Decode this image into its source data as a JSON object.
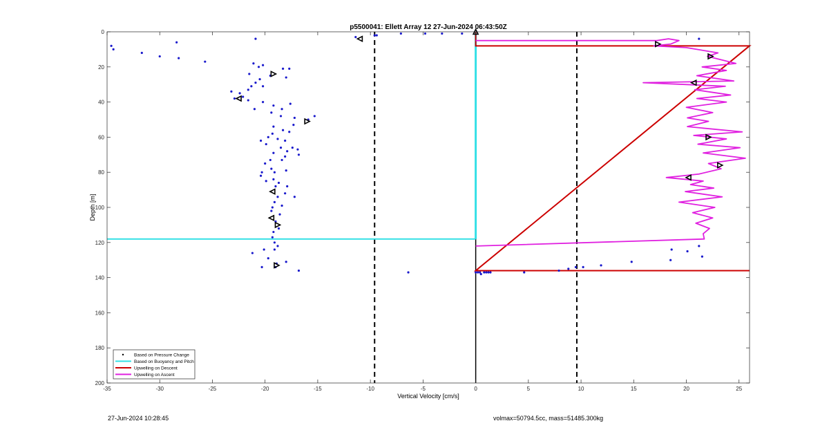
{
  "chart_data": {
    "type": "scatter",
    "title": "p5500041: Ellett Array 12 27-Jun-2024 06:43:50Z",
    "xlabel": "Vertical Velocity [cm/s]",
    "ylabel": "Depth [m]",
    "xlim": [
      -35,
      26
    ],
    "ylim": [
      0,
      200
    ],
    "y_reversed": true,
    "x_ticks": [
      -35,
      -30,
      -25,
      -20,
      -15,
      -10,
      -5,
      0,
      5,
      10,
      15,
      20,
      25
    ],
    "y_ticks": [
      0,
      20,
      40,
      60,
      80,
      100,
      120,
      140,
      160,
      180,
      200
    ],
    "grid": false,
    "legend_position": "bottom-left",
    "legend": [
      {
        "label": "Based on Pressure Change",
        "color": "#000000",
        "kind": "dot"
      },
      {
        "label": "Based on Buoyancy and Pitch",
        "color": "#33e0e6",
        "kind": "line"
      },
      {
        "label": "Upwelling on Descent",
        "color": "#cc0000",
        "kind": "line"
      },
      {
        "label": "Upwelling on Ascent",
        "color": "#e020e0",
        "kind": "line"
      }
    ],
    "pressure_points": [
      [
        -34.6,
        8
      ],
      [
        -34.4,
        10
      ],
      [
        -31.7,
        12
      ],
      [
        -30,
        14
      ],
      [
        -28.4,
        6
      ],
      [
        -28.2,
        15
      ],
      [
        -25.7,
        17
      ],
      [
        -20.9,
        4
      ],
      [
        -21.1,
        18
      ],
      [
        -20.6,
        20
      ],
      [
        -20.2,
        19
      ],
      [
        -21.5,
        24
      ],
      [
        -19.5,
        25
      ],
      [
        -18.3,
        21
      ],
      [
        -17.7,
        21
      ],
      [
        -18,
        26
      ],
      [
        -20.5,
        27
      ],
      [
        -20.9,
        29
      ],
      [
        -20.2,
        31
      ],
      [
        -21.3,
        31
      ],
      [
        -21.6,
        33
      ],
      [
        -22.4,
        35
      ],
      [
        -23.2,
        34
      ],
      [
        -22.1,
        37
      ],
      [
        -22.9,
        38
      ],
      [
        -21.6,
        39
      ],
      [
        -20.2,
        40
      ],
      [
        -21,
        44
      ],
      [
        -19.2,
        42
      ],
      [
        -17.6,
        41
      ],
      [
        -18.4,
        44
      ],
      [
        -19.4,
        46
      ],
      [
        -18.5,
        48
      ],
      [
        -17.2,
        49
      ],
      [
        -15.3,
        48
      ],
      [
        -15.9,
        50
      ],
      [
        -17.3,
        53
      ],
      [
        -19.2,
        54
      ],
      [
        -18.3,
        56
      ],
      [
        -19.3,
        58
      ],
      [
        -17.7,
        57
      ],
      [
        -19.7,
        60
      ],
      [
        -18.8,
        61
      ],
      [
        -18.1,
        62
      ],
      [
        -20.4,
        62
      ],
      [
        -19.9,
        64
      ],
      [
        -18.5,
        66
      ],
      [
        -17.4,
        66
      ],
      [
        -16.9,
        67
      ],
      [
        -17.9,
        68
      ],
      [
        -19.2,
        69
      ],
      [
        -16.8,
        70
      ],
      [
        -18.1,
        71
      ],
      [
        -19.5,
        73
      ],
      [
        -18.4,
        73
      ],
      [
        -20,
        75
      ],
      [
        -19.4,
        78
      ],
      [
        -20.3,
        80
      ],
      [
        -19.1,
        80
      ],
      [
        -18,
        79
      ],
      [
        -20.4,
        82
      ],
      [
        -19.9,
        85
      ],
      [
        -19.2,
        84
      ],
      [
        -18.7,
        86
      ],
      [
        -17.9,
        88
      ],
      [
        -19,
        88
      ],
      [
        -18.1,
        92
      ],
      [
        -17.2,
        94
      ],
      [
        -18.8,
        94
      ],
      [
        -19.1,
        97
      ],
      [
        -18.4,
        99
      ],
      [
        -19.3,
        100
      ],
      [
        -19.4,
        102
      ],
      [
        -18.6,
        104
      ],
      [
        -19,
        108
      ],
      [
        -18.7,
        112
      ],
      [
        -19.2,
        114
      ],
      [
        -19.3,
        117
      ],
      [
        -19.1,
        120
      ],
      [
        -18.8,
        122
      ],
      [
        -19.1,
        124
      ],
      [
        -20.1,
        124
      ],
      [
        -21.2,
        126
      ],
      [
        -19.7,
        129
      ],
      [
        -18.9,
        132
      ],
      [
        -18,
        131
      ],
      [
        -20.3,
        134
      ],
      [
        -19,
        134
      ],
      [
        -16.8,
        136
      ],
      [
        -11.4,
        3
      ],
      [
        -9.6,
        2
      ],
      [
        -9.4,
        2
      ],
      [
        -7.1,
        1
      ],
      [
        -4.8,
        1
      ],
      [
        -3.2,
        1
      ],
      [
        -1.3,
        1
      ],
      [
        -6.4,
        137
      ],
      [
        0,
        137
      ],
      [
        0.2,
        137
      ],
      [
        0.4,
        137
      ],
      [
        0.5,
        138
      ],
      [
        0.8,
        137
      ],
      [
        1,
        137
      ],
      [
        1.2,
        137
      ],
      [
        1.4,
        137
      ],
      [
        4.6,
        137
      ],
      [
        7.9,
        136
      ],
      [
        8.8,
        135
      ],
      [
        9.5,
        134
      ],
      [
        10.2,
        134
      ],
      [
        11.9,
        133
      ],
      [
        14.8,
        131
      ],
      [
        18.6,
        124
      ],
      [
        20.1,
        125
      ],
      [
        21.5,
        128
      ],
      [
        21.2,
        122
      ],
      [
        18.5,
        130
      ],
      [
        21.2,
        4
      ]
    ],
    "buoyancy_line": {
      "x": 0,
      "y_range": [
        0,
        118
      ],
      "horizontal_at_depth": 118,
      "horizontal_x_range": [
        -35,
        0
      ]
    },
    "descent_upwelling": [
      [
        0,
        0
      ],
      [
        0,
        8
      ],
      [
        26,
        8
      ],
      [
        0,
        136
      ],
      [
        26,
        136
      ]
    ],
    "ascent_upwelling": [
      [
        0,
        5
      ],
      [
        17.2,
        5
      ],
      [
        18.3,
        4
      ],
      [
        19.3,
        5
      ],
      [
        18.5,
        7
      ],
      [
        16.9,
        8
      ],
      [
        20,
        9
      ],
      [
        23,
        12
      ],
      [
        22,
        14
      ],
      [
        24.7,
        18
      ],
      [
        21.5,
        20
      ],
      [
        23.8,
        22
      ],
      [
        21,
        25
      ],
      [
        24.5,
        28
      ],
      [
        15.9,
        29
      ],
      [
        23.7,
        31
      ],
      [
        20.8,
        33
      ],
      [
        24.2,
        36
      ],
      [
        21,
        38
      ],
      [
        23.8,
        40
      ],
      [
        20,
        43
      ],
      [
        22.5,
        46
      ],
      [
        20.1,
        49
      ],
      [
        22.1,
        51
      ],
      [
        20.1,
        54
      ],
      [
        25.3,
        57
      ],
      [
        20.7,
        59
      ],
      [
        23.8,
        61
      ],
      [
        21.1,
        64
      ],
      [
        25.1,
        66
      ],
      [
        21.6,
        69
      ],
      [
        25.6,
        72
      ],
      [
        22.1,
        75
      ],
      [
        23.3,
        78
      ],
      [
        21.2,
        81
      ],
      [
        18.1,
        83
      ],
      [
        21.6,
        85
      ],
      [
        20.4,
        87
      ],
      [
        22.6,
        89
      ],
      [
        19.9,
        91
      ],
      [
        23.4,
        94
      ],
      [
        19.3,
        97
      ],
      [
        22.7,
        100
      ],
      [
        20.6,
        103
      ],
      [
        22.5,
        106
      ],
      [
        20.9,
        109
      ],
      [
        22.2,
        112
      ],
      [
        21.6,
        115
      ],
      [
        21.7,
        118
      ],
      [
        0,
        122
      ]
    ],
    "dashed_lines_x": [
      -9.6,
      9.6
    ],
    "zero_line_x": 0,
    "orientation_markers": [
      [
        -11,
        4,
        "left"
      ],
      [
        -19.2,
        24,
        "right"
      ],
      [
        -22.5,
        38,
        "left"
      ],
      [
        -16,
        51,
        "right"
      ],
      [
        -19.3,
        91,
        "left"
      ],
      [
        -19.4,
        106,
        "left"
      ],
      [
        -18.8,
        110,
        "right"
      ],
      [
        -18.9,
        133,
        "right"
      ],
      [
        17.3,
        7,
        "right"
      ],
      [
        22.3,
        14,
        "right"
      ],
      [
        20.7,
        29,
        "left"
      ],
      [
        22.1,
        60,
        "right"
      ],
      [
        23.2,
        76,
        "right"
      ],
      [
        20.2,
        83,
        "left"
      ],
      [
        0,
        0,
        "up"
      ]
    ]
  },
  "footer": {
    "left": "27-Jun-2024 10:28:45",
    "right": "volmax=50794.5cc, mass=51485.300kg"
  }
}
